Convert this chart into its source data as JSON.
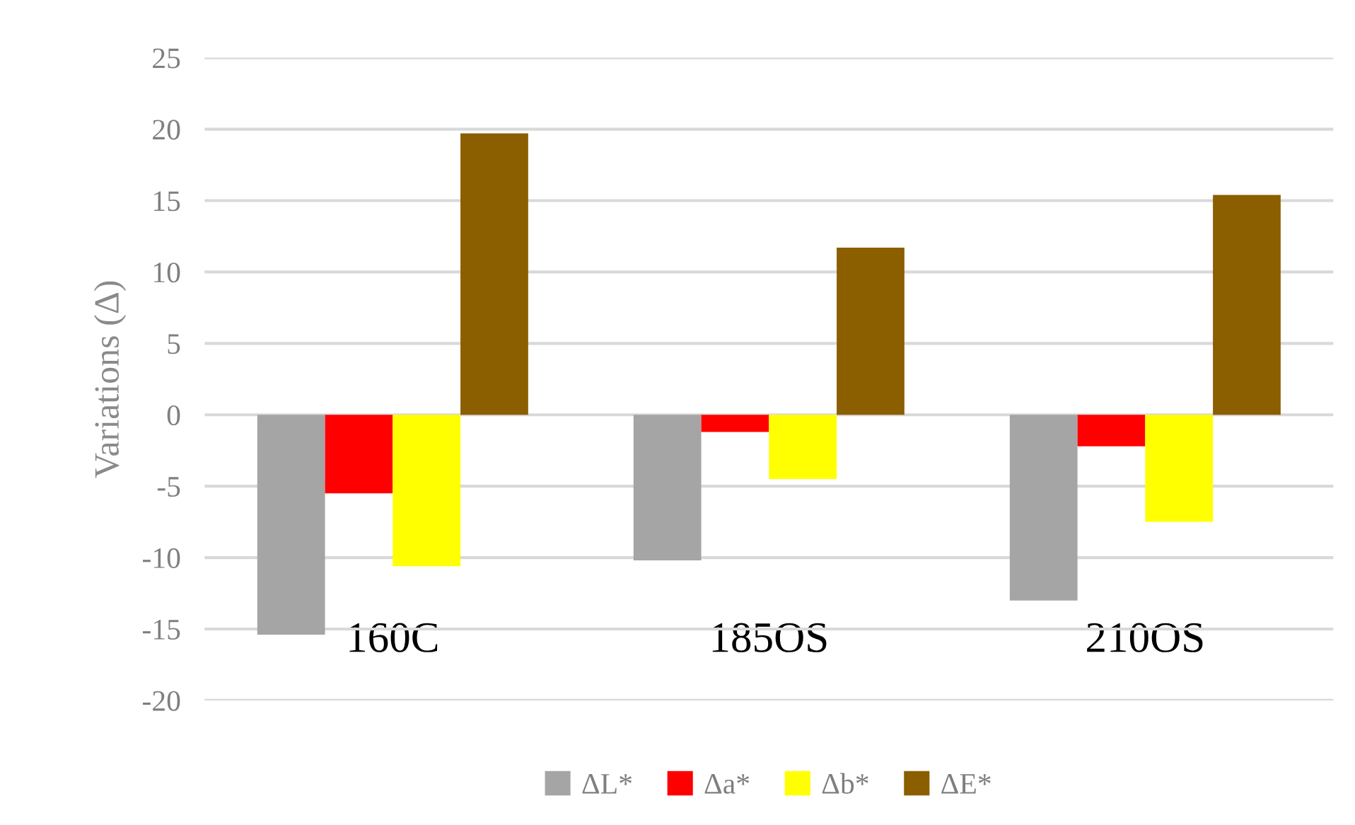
{
  "chart_data": {
    "type": "bar",
    "ylabel": "Variations (Δ)",
    "categories": [
      "160C",
      "185OS",
      "210OS"
    ],
    "series": [
      {
        "name": "ΔL*",
        "color": "#a5a5a5",
        "values": [
          -15.4,
          -10.2,
          -13.0
        ]
      },
      {
        "name": "Δa*",
        "color": "#ff0000",
        "values": [
          -5.5,
          -1.2,
          -2.2
        ]
      },
      {
        "name": "Δb*",
        "color": "#ffff00",
        "values": [
          -10.6,
          -4.5,
          -7.5
        ]
      },
      {
        "name": "ΔE*",
        "color": "#8b5e00",
        "values": [
          19.7,
          11.7,
          15.4
        ]
      }
    ],
    "ylim": [
      -20,
      25
    ],
    "yticks": [
      -20,
      -15,
      -10,
      -5,
      0,
      5,
      10,
      15,
      20,
      25
    ],
    "grid": "y",
    "legend": "bottom"
  }
}
